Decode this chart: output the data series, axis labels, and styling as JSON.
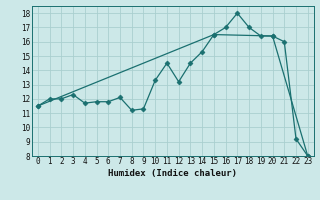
{
  "xlabel": "Humidex (Indice chaleur)",
  "bg_color": "#cce8e8",
  "line_color": "#1a7070",
  "grid_color": "#aacfcf",
  "xlim": [
    -0.5,
    23.5
  ],
  "ylim": [
    8,
    18.5
  ],
  "xticks": [
    0,
    1,
    2,
    3,
    4,
    5,
    6,
    7,
    8,
    9,
    10,
    11,
    12,
    13,
    14,
    15,
    16,
    17,
    18,
    19,
    20,
    21,
    22,
    23
  ],
  "yticks": [
    8,
    9,
    10,
    11,
    12,
    13,
    14,
    15,
    16,
    17,
    18
  ],
  "series1_x": [
    0,
    1,
    2,
    3,
    4,
    5,
    6,
    7,
    8,
    9,
    10,
    11,
    12,
    13,
    14,
    15,
    16,
    17,
    18,
    19,
    20,
    21,
    22,
    23
  ],
  "series1_y": [
    11.5,
    12.0,
    12.0,
    12.3,
    11.7,
    11.8,
    11.8,
    12.1,
    11.2,
    11.3,
    13.3,
    14.5,
    13.2,
    14.5,
    15.3,
    16.5,
    17.0,
    18.0,
    17.0,
    16.4,
    16.4,
    16.0,
    9.2,
    8.0
  ],
  "series2_x": [
    0,
    15,
    20,
    23
  ],
  "series2_y": [
    11.5,
    16.5,
    16.4,
    8.0
  ],
  "marker": "D",
  "markersize": 2.5,
  "linewidth": 0.9,
  "tick_fontsize": 5.5,
  "xlabel_fontsize": 6.5
}
